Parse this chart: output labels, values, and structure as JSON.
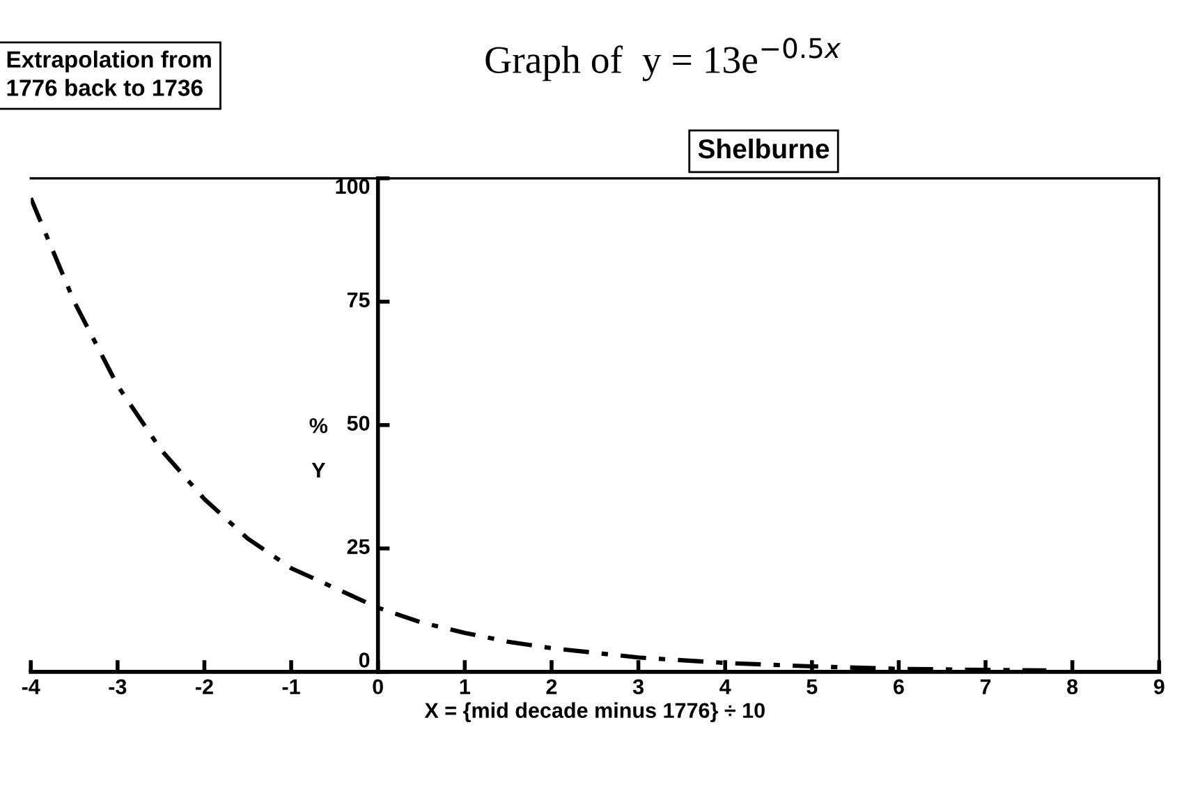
{
  "chart_data": {
    "type": "line",
    "title": "Graph of  y = 13e$^{−0.5x}$",
    "xlabel": "X = {mid decade minus 1776} ÷ 10",
    "ylabel": "%\nY",
    "annotations": [
      "Extrapolation from\n1776 back to 1736",
      "Shelburne"
    ],
    "x": [
      -4,
      -3.5,
      -3,
      -2.5,
      -2,
      -1.5,
      -1,
      -0.5,
      0,
      0.5,
      1,
      1.5,
      2,
      3,
      4,
      5,
      6,
      7,
      7.7
    ],
    "values": [
      96,
      75,
      58,
      45,
      35,
      27,
      21,
      17,
      13,
      10,
      7.9,
      6.1,
      4.8,
      2.9,
      1.8,
      1.1,
      0.6,
      0.4,
      0.3
    ],
    "color": "#000000",
    "line_style": "dashed",
    "marker": "none",
    "grid": false,
    "legend": false,
    "xlim": [
      -4,
      9
    ],
    "xticks": [
      -4,
      -3,
      -2,
      -1,
      0,
      1,
      2,
      3,
      4,
      5,
      6,
      7,
      8,
      9
    ],
    "ylim": [
      0,
      100
    ],
    "yticks": [
      0,
      25,
      50,
      75,
      100
    ]
  }
}
